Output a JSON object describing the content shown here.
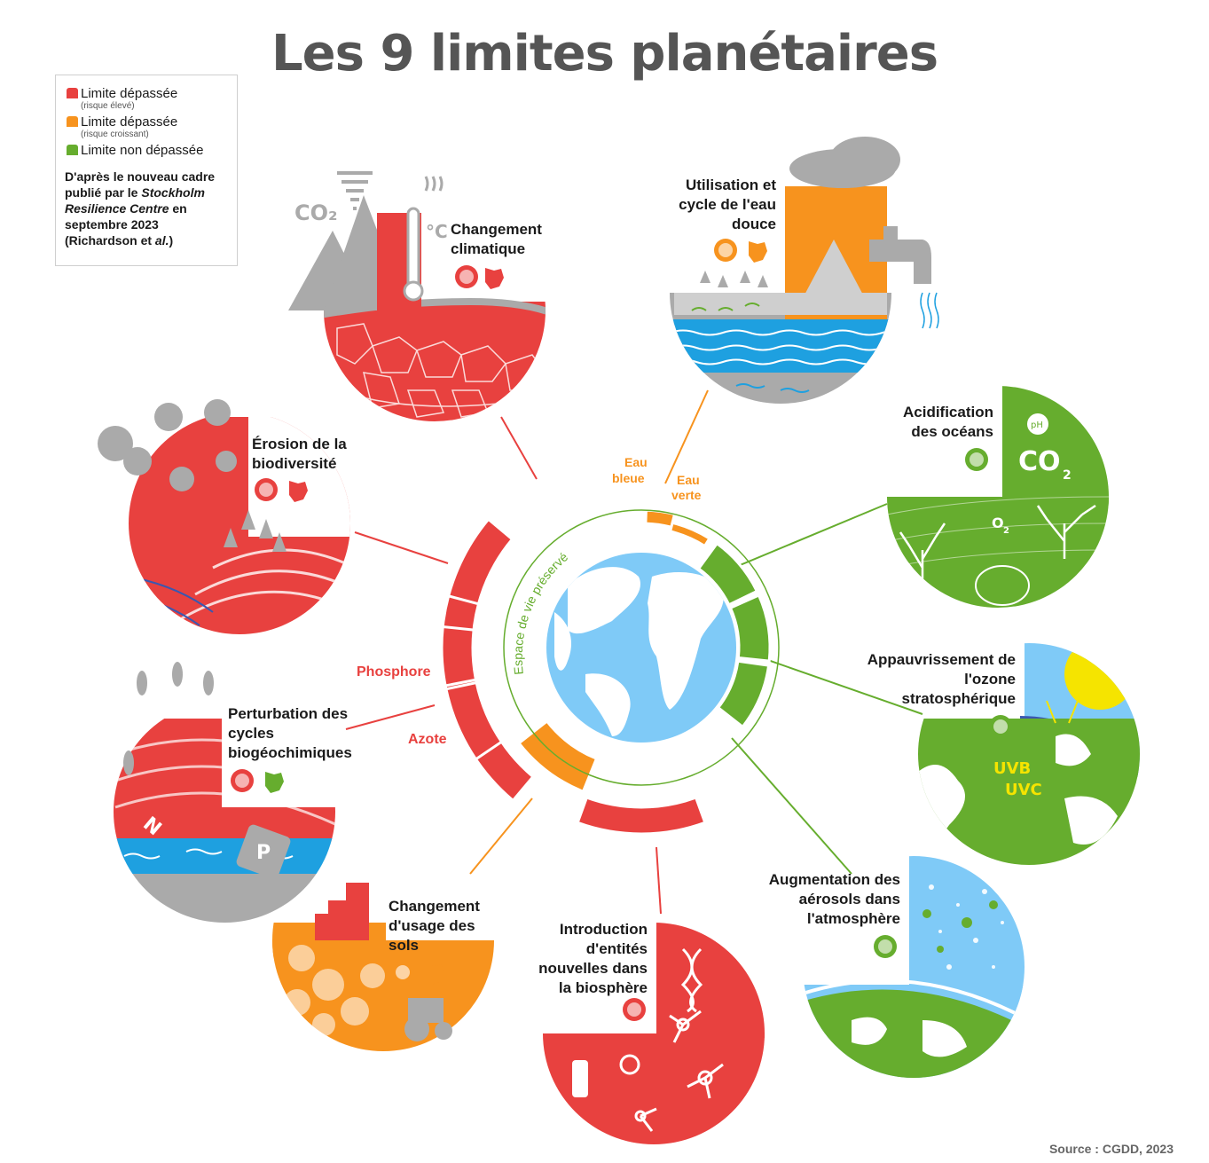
{
  "title": "Les 9 limites planétaires",
  "colors": {
    "red": "#e8413f",
    "orange": "#f7931e",
    "green": "#66ad2e",
    "sky": "#7fcaf7",
    "water": "#1ea0e0",
    "gray": "#aaaaaa"
  },
  "legend": {
    "items": [
      {
        "label": "Limite dépassée",
        "sub": "(risque élevé)",
        "color": "#e8413f"
      },
      {
        "label": "Limite dépassée",
        "sub": "(risque croissant)",
        "color": "#f7931e"
      },
      {
        "label": "Limite non dépassée",
        "sub": "",
        "color": "#66ad2e"
      }
    ],
    "source_line1": "D'après le nouveau cadre publié par le ",
    "source_italic1": "Stockholm Resilience Centre",
    "source_line2": " en septembre 2023 (Richardson et ",
    "source_italic2": "al.",
    "source_line3": ")"
  },
  "ring": {
    "inner_label": "Espace de vie préservé",
    "eau_bleue": "Eau bleue",
    "eau_verte": "Eau verte",
    "phosphore": "Phosphore",
    "azote": "Azote"
  },
  "boundaries": [
    {
      "id": "climat",
      "label": "Changement climatique",
      "status": "red",
      "scope": [
        "monde",
        "france"
      ],
      "co2": "CO₂",
      "deg": "°C"
    },
    {
      "id": "eau",
      "label": "Utilisation et cycle de l'eau douce",
      "status": "orange",
      "scope": [
        "monde",
        "france"
      ]
    },
    {
      "id": "acid",
      "label": "Acidification des océans",
      "status": "green",
      "scope": [
        "monde"
      ],
      "ph": "pH",
      "co2": "CO",
      "co2_sub": "2",
      "o2": "O",
      "o2_sub": "2"
    },
    {
      "id": "ozone",
      "label": "Appauvrissement de l'ozone stratosphérique",
      "status": "green",
      "scope": [
        "monde"
      ],
      "uvb": "UVB",
      "uvc": "UVC"
    },
    {
      "id": "aerosols",
      "label": "Augmentation des aérosols dans l'atmosphère",
      "status": "green",
      "scope": [
        "monde"
      ]
    },
    {
      "id": "entites",
      "label": "Introduction d'entités nouvelles dans la biosphère",
      "status": "red",
      "scope": [
        "monde"
      ]
    },
    {
      "id": "sols",
      "label": "Changement d'usage des sols",
      "status": "orange",
      "scope": [
        "monde",
        "france"
      ]
    },
    {
      "id": "cycles",
      "label": "Perturbation des cycles biogéochimiques",
      "status": "red",
      "scope": [
        "monde",
        "france"
      ],
      "n": "N",
      "p": "P"
    },
    {
      "id": "biodiv",
      "label": "Érosion de la biodiversité",
      "status": "red",
      "scope": [
        "monde",
        "france"
      ]
    }
  ],
  "source": "Source : CGDD, 2023"
}
